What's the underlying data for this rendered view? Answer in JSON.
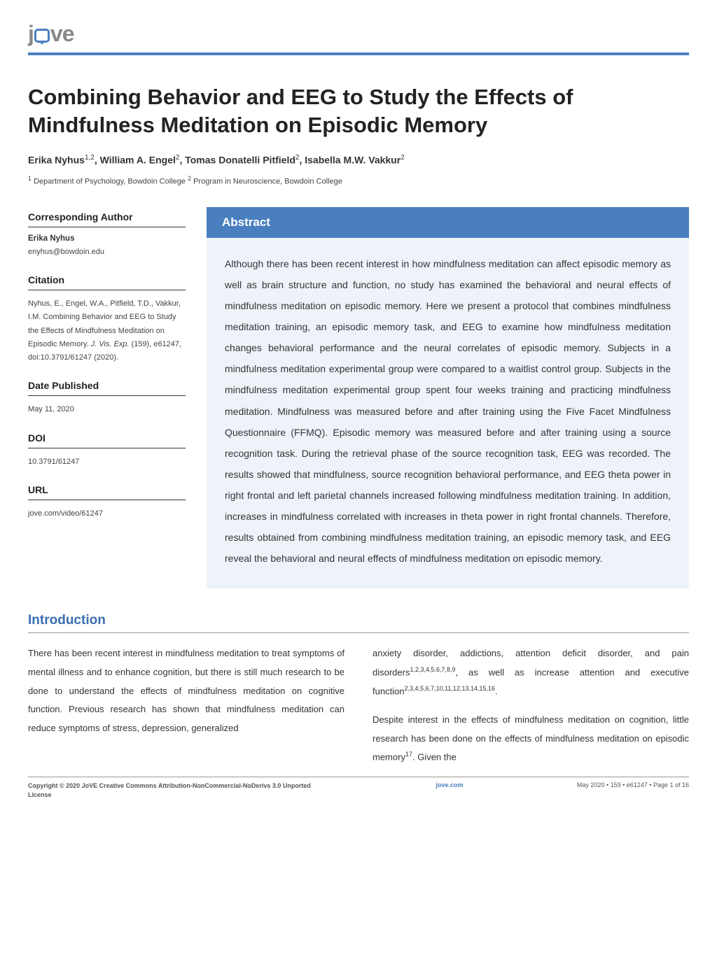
{
  "brand": {
    "prefix": "j",
    "suffix": "ve"
  },
  "title": "Combining Behavior and EEG to Study the Effects of Mindfulness Meditation on Episodic Memory",
  "authors_html": "Erika  Nyhus<sup>1,2</sup>,  William A.  Engel<sup>2</sup>,  Tomas Donatelli  Pitfield<sup>2</sup>,  Isabella M.W.  Vakkur<sup>2</sup>",
  "affiliations_html": "<sup>1</sup> Department of Psychology, Bowdoin College  <sup>2</sup> Program in Neuroscience, Bowdoin College",
  "sidebar": {
    "corr_h": "Corresponding Author",
    "corr_name": "Erika Nyhus",
    "corr_email": "enyhus@bowdoin.edu",
    "citation_h": "Citation",
    "citation_html": "Nyhus, E., Engel, W.A., Pitfield, T.D., Vakkur, I.M. Combining Behavior and EEG to Study the Effects of Mindfulness Meditation on Episodic Memory. <span class=\"em\">J. Vis. Exp.</span> (159), e61247, doi:10.3791/61247 (2020).",
    "date_h": "Date Published",
    "date_val": "May 11, 2020",
    "doi_h": "DOI",
    "doi_val": "10.3791/61247",
    "url_h": "URL",
    "url_val": "jove.com/video/61247"
  },
  "abstract": {
    "header": "Abstract",
    "body": "Although there has been recent interest in how mindfulness meditation can affect episodic memory as well as brain structure and function, no study has examined the behavioral and neural effects of mindfulness meditation on episodic memory. Here we present a protocol that combines mindfulness meditation training, an episodic memory task, and EEG to examine how mindfulness meditation changes behavioral performance and the neural correlates of episodic memory. Subjects in a mindfulness meditation experimental group were compared to a waitlist control group. Subjects in the mindfulness meditation experimental group spent four weeks training and practicing mindfulness meditation. Mindfulness was measured before and after training using the Five Facet Mindfulness Questionnaire (FFMQ). Episodic memory was measured before and after training using a source recognition task. During the retrieval phase of the source recognition task, EEG was recorded. The results showed that mindfulness, source recognition behavioral performance, and EEG theta power in right frontal and left parietal channels increased following mindfulness meditation training. In addition, increases in mindfulness correlated with increases in theta power in right frontal channels. Therefore, results obtained from combining mindfulness meditation training, an episodic memory task, and EEG reveal the behavioral and neural effects of mindfulness meditation on episodic memory."
  },
  "intro": {
    "header": "Introduction",
    "p1": "There has been recent interest in mindfulness meditation to treat symptoms of mental illness and to enhance cognition, but there is still much research to be done to understand the effects of mindfulness meditation on cognitive function. Previous research has shown that mindfulness meditation can reduce symptoms of stress, depression, generalized",
    "p2_html": "anxiety disorder, addictions, attention deficit disorder, and pain disorders<sup>1,2,3,4,5,6,7,8,9</sup>, as well as increase attention and executive function<sup>2,3,4,5,6,7,10,11,12,13,14,15,16</sup>.",
    "p3_html": "Despite interest in the effects of mindfulness meditation on cognition, little research has been done on the effects of mindfulness meditation on episodic memory<sup>17</sup>. Given the"
  },
  "footer": {
    "left_html": "<span class=\"bold\">Copyright © 2020  JoVE Creative Commons Attribution-NonCommercial-NoDerivs 3.0 Unported License</span>",
    "center": "jove.com",
    "right": "May 2020 • 159 •  e61247 • Page 1 of 16"
  },
  "colors": {
    "accent": "#4a7fbf",
    "abstract_bg": "#eef3fa",
    "text": "#333333",
    "rule": "#999999"
  }
}
